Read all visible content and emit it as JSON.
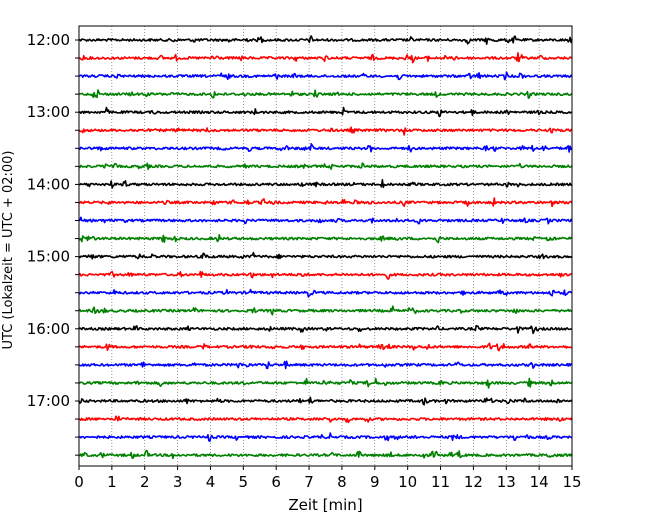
{
  "chart_data": {
    "type": "line",
    "title": "",
    "xlabel": "Zeit  [min]",
    "ylabel": "UTC (Lokalzeit = UTC + 02:00)",
    "xlim": [
      0,
      15
    ],
    "x_ticks": [
      0,
      1,
      2,
      3,
      4,
      5,
      6,
      7,
      8,
      9,
      10,
      11,
      12,
      13,
      14,
      15
    ],
    "y_tick_labels": [
      "12:00",
      "13:00",
      "14:00",
      "15:00",
      "16:00",
      "17:00"
    ],
    "rows_per_hour": 4,
    "row_start_times": [
      "12:00",
      "12:15",
      "12:30",
      "12:45",
      "13:00",
      "13:15",
      "13:30",
      "13:45",
      "14:00",
      "14:15",
      "14:30",
      "14:45",
      "15:00",
      "15:15",
      "15:30",
      "15:45",
      "16:00",
      "16:15",
      "16:30",
      "16:45",
      "17:00",
      "17:15",
      "17:30",
      "17:45"
    ],
    "row_colors_cycle": [
      "#000000",
      "#ff0000",
      "#0000ff",
      "#008000"
    ],
    "vertical_grid": true,
    "grid_style": "dotted"
  }
}
